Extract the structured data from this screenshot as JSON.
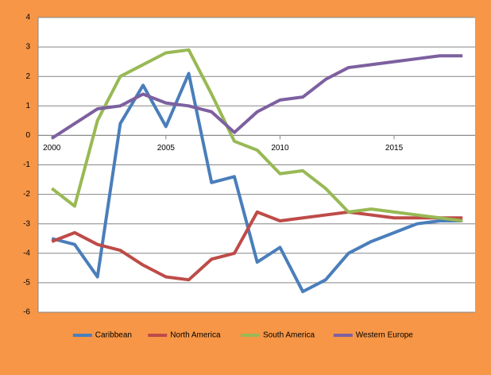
{
  "chart_data": {
    "type": "line",
    "x": [
      2000,
      2001,
      2002,
      2003,
      2004,
      2005,
      2006,
      2007,
      2008,
      2009,
      2010,
      2011,
      2012,
      2013,
      2014,
      2015,
      2016,
      2017,
      2018
    ],
    "series": [
      {
        "name": "Caribbean",
        "color": "#4a7ebb",
        "values": [
          -3.5,
          -3.7,
          -4.8,
          0.4,
          1.7,
          0.3,
          2.1,
          -1.6,
          -1.4,
          -4.3,
          -3.8,
          -5.3,
          -4.9,
          -4.0,
          -3.6,
          -3.3,
          -3.0,
          -2.9,
          -2.9
        ]
      },
      {
        "name": "North America",
        "color": "#be4b48",
        "values": [
          -3.6,
          -3.3,
          -3.7,
          -3.9,
          -4.4,
          -4.8,
          -4.9,
          -4.2,
          -4.0,
          -2.6,
          -2.9,
          -2.8,
          -2.7,
          -2.6,
          -2.7,
          -2.8,
          -2.8,
          -2.8,
          -2.8
        ]
      },
      {
        "name": "South America",
        "color": "#98b954",
        "values": [
          -1.8,
          -2.4,
          0.5,
          2.0,
          2.4,
          2.8,
          2.9,
          1.4,
          -0.2,
          -0.5,
          -1.3,
          -1.2,
          -1.8,
          -2.6,
          -2.5,
          -2.6,
          -2.7,
          -2.8,
          -2.9
        ]
      },
      {
        "name": "Western Europe",
        "color": "#7d60a0",
        "values": [
          -0.1,
          0.4,
          0.9,
          1.0,
          1.4,
          1.1,
          1.0,
          0.8,
          0.1,
          0.8,
          1.2,
          1.3,
          1.9,
          2.3,
          2.4,
          2.5,
          2.6,
          2.7,
          2.7
        ]
      }
    ],
    "xlim": [
      1999.4,
      2018.55
    ],
    "xticks": [
      2000,
      2005,
      2010,
      2015
    ],
    "ylim": [
      -6,
      4
    ],
    "yticks": [
      -6,
      -5,
      -4,
      -3,
      -2,
      -1,
      0,
      1,
      2,
      3,
      4
    ],
    "grid": true,
    "legend": "bottom",
    "background": "#f79646"
  }
}
